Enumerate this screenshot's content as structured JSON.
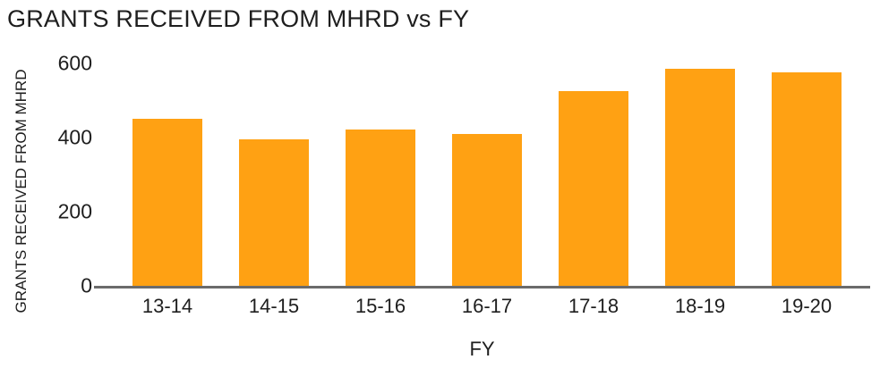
{
  "chart_data": {
    "type": "bar",
    "title": "GRANTS RECEIVED FROM MHRD vs FY",
    "xlabel": "FY",
    "ylabel": "GRANTS RECEIVED FROM MHRD",
    "categories": [
      "13-14",
      "14-15",
      "15-16",
      "16-17",
      "17-18",
      "18-19",
      "19-20"
    ],
    "values": [
      450,
      395,
      420,
      410,
      525,
      585,
      575
    ],
    "ylim": [
      0,
      600
    ],
    "yticks": [
      0,
      200,
      400,
      600
    ],
    "grid": false,
    "legend": false,
    "colors": {
      "bar": "#FFA113",
      "axis_line": "#6B6B6B",
      "text": "#1E1E1E",
      "background": "#FFFFFF"
    }
  }
}
